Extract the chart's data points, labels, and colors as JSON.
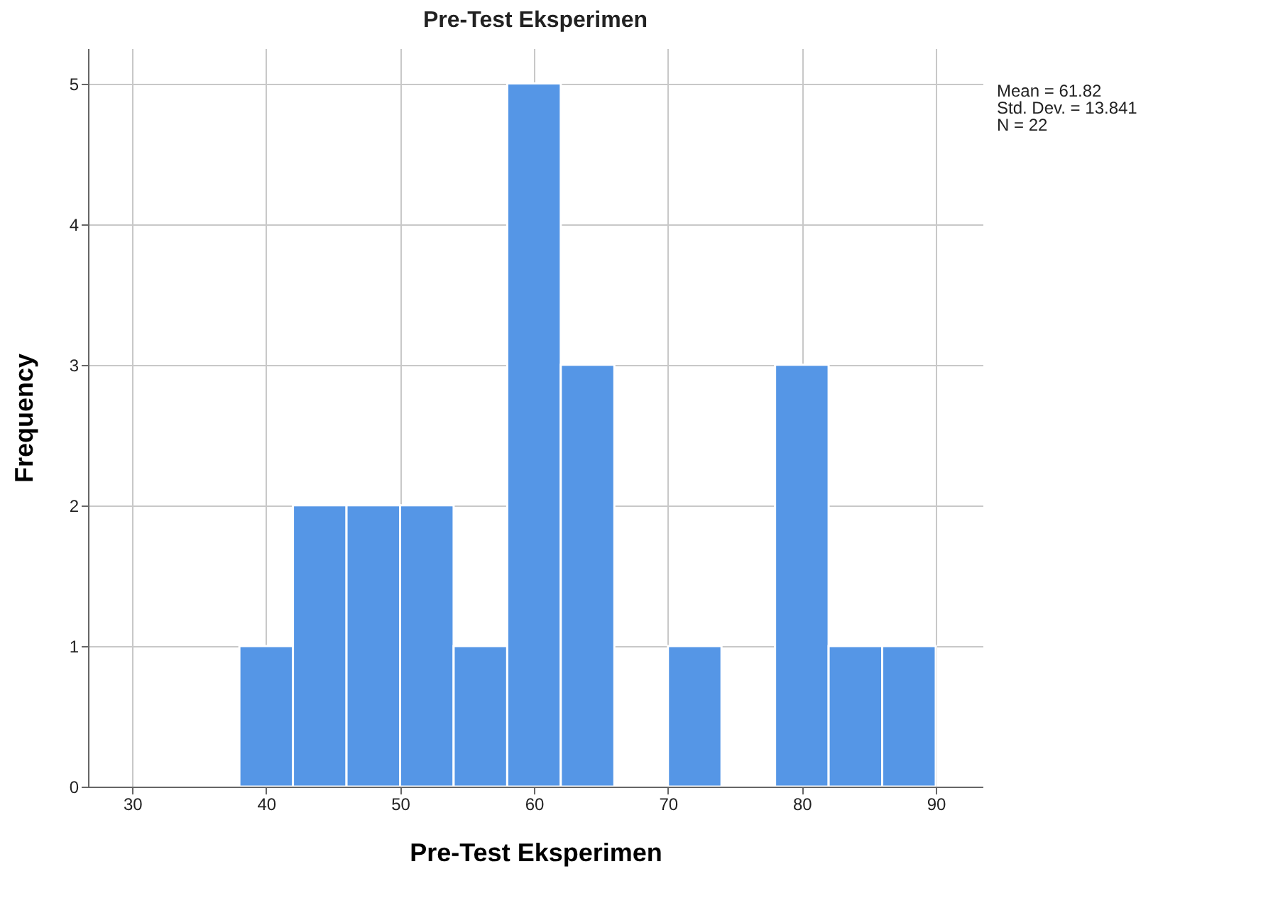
{
  "chart_data": {
    "type": "histogram",
    "title": "Pre-Test Eksperimen",
    "xlabel": "Pre-Test Eksperimen",
    "ylabel": "Frequency",
    "bins": [
      38,
      42,
      46,
      50,
      54,
      58,
      62,
      66,
      70,
      74,
      78,
      82,
      86,
      90
    ],
    "values": [
      1,
      2,
      2,
      2,
      1,
      5,
      3,
      0,
      1,
      0,
      3,
      1,
      1
    ],
    "color": "#5596e6",
    "xlim": [
      26.7,
      93.5
    ],
    "xticks": [
      30,
      40,
      50,
      60,
      70,
      80,
      90
    ],
    "ylim": [
      0,
      5.25
    ],
    "yticks": [
      0,
      1,
      2,
      3,
      4,
      5
    ],
    "grid": true,
    "annotations": [
      "Mean = 61.82",
      "Std. Dev. = 13.841",
      "N = 22"
    ]
  }
}
